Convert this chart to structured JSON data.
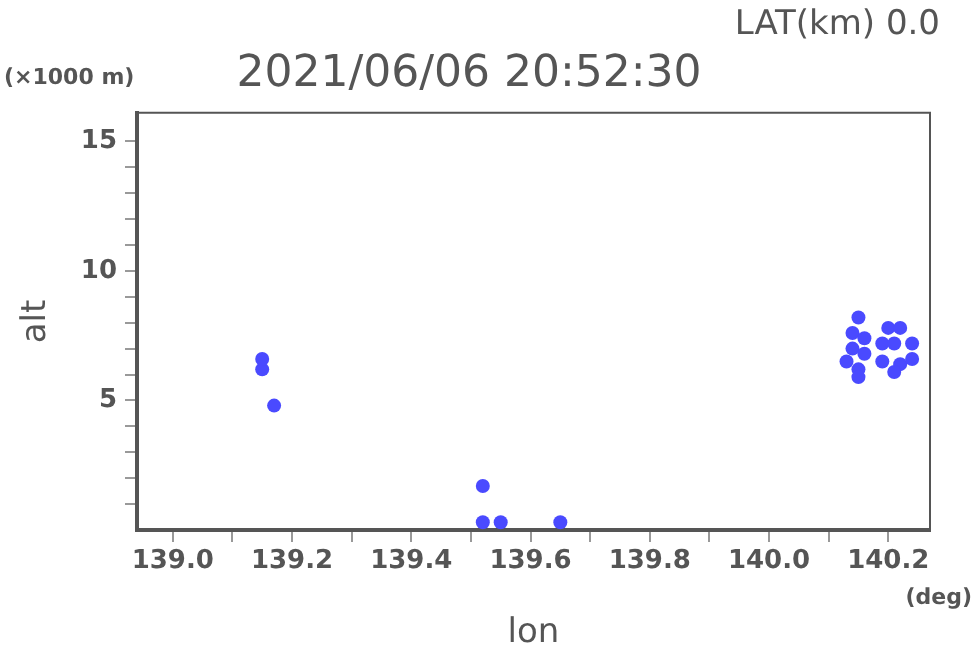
{
  "chart_data": {
    "type": "scatter",
    "title": "2021/06/06 20:52:30",
    "xlabel": "lon",
    "ylabel": "alt",
    "annotations": [
      "LAT(km) 0.0",
      "(×1000 m)",
      "(deg)"
    ],
    "x": [
      140.15,
      140.14,
      140.14,
      140.13,
      140.15,
      140.16,
      140.16,
      140.15,
      140.2,
      140.22,
      140.19,
      140.21,
      140.24,
      140.19,
      140.22,
      140.24,
      140.21,
      139.15,
      139.15,
      139.17,
      139.52,
      139.52,
      139.55,
      139.65
    ],
    "series": [
      {
        "color": "#4a4aff",
        "values": [
          8.2,
          7.6,
          7.0,
          6.5,
          6.2,
          7.4,
          6.8,
          5.9,
          7.8,
          7.8,
          7.2,
          7.2,
          7.2,
          6.5,
          6.4,
          6.6,
          6.1,
          6.2,
          6.6,
          4.8,
          1.7,
          0.3,
          0.3,
          0.3
        ]
      }
    ],
    "xlim": [
      138.94,
      140.27
    ],
    "ylim": [
      0,
      16.1
    ],
    "xticks": [
      "139.0",
      {
        "value": 139.1,
        "label": null
      },
      "139.2",
      {
        "value": 139.3,
        "label": null
      },
      139.4,
      {
        "value": 139.5,
        "label": null
      },
      139.6,
      {
        "value": 139.7,
        "label": null
      },
      139.8,
      {
        "value": 139.9,
        "label": null
      },
      "140.0",
      {
        "value": 140.1,
        "label": null
      },
      140.2
    ],
    "yticks": [
      {
        "value": 1,
        "label": null
      },
      {
        "value": 2,
        "label": null
      },
      {
        "value": 3,
        "label": null
      },
      {
        "value": 4,
        "label": null
      },
      5,
      {
        "value": 6,
        "label": null
      },
      {
        "value": 7,
        "label": null
      },
      {
        "value": 8,
        "label": null
      },
      {
        "value": 9,
        "label": null
      },
      10,
      {
        "value": 11,
        "label": null
      },
      {
        "value": 12,
        "label": null
      },
      {
        "value": 13,
        "label": null
      },
      {
        "value": 14,
        "label": null
      },
      15
    ],
    "marker": "circle",
    "grid": false,
    "legend": false
  }
}
